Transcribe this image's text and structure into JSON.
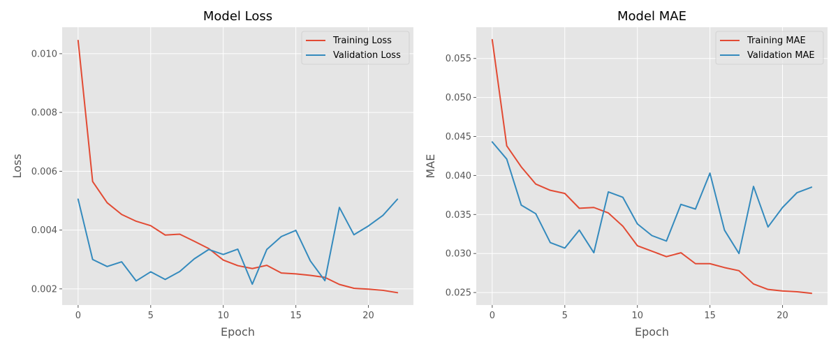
{
  "chart_data": [
    {
      "type": "line",
      "title": "Model Loss",
      "xlabel": "Epoch",
      "ylabel": "Loss",
      "xlim": [
        -1.1,
        23.1
      ],
      "ylim": [
        0.00145,
        0.0109
      ],
      "xticks": [
        0,
        5,
        10,
        15,
        20
      ],
      "xtick_labels": [
        "0",
        "5",
        "10",
        "15",
        "20"
      ],
      "yticks": [
        0.002,
        0.004,
        0.006,
        0.008,
        0.01
      ],
      "ytick_labels": [
        "0.002",
        "0.004",
        "0.006",
        "0.008",
        "0.010"
      ],
      "grid": true,
      "legend": "top-right",
      "x": [
        0,
        1,
        2,
        3,
        4,
        5,
        6,
        7,
        8,
        9,
        10,
        11,
        12,
        13,
        14,
        15,
        16,
        17,
        18,
        19,
        20,
        21,
        22
      ],
      "series": [
        {
          "name": "Training Loss",
          "color": "#E24A33",
          "values": [
            0.01045,
            0.00565,
            0.00493,
            0.00453,
            0.0043,
            0.00415,
            0.00383,
            0.00386,
            0.00362,
            0.00337,
            0.00298,
            0.00279,
            0.00269,
            0.0028,
            0.00254,
            0.00251,
            0.00246,
            0.00239,
            0.00215,
            0.00202,
            0.00199,
            0.00195,
            0.00187
          ]
        },
        {
          "name": "Validation Loss",
          "color": "#348ABD",
          "values": [
            0.00505,
            0.003,
            0.00276,
            0.00292,
            0.00227,
            0.00258,
            0.00232,
            0.00259,
            0.00302,
            0.00334,
            0.00317,
            0.00335,
            0.00216,
            0.00334,
            0.00378,
            0.00399,
            0.00295,
            0.00228,
            0.00477,
            0.00384,
            0.00414,
            0.0045,
            0.00505
          ]
        }
      ]
    },
    {
      "type": "line",
      "title": "Model MAE",
      "xlabel": "Epoch",
      "ylabel": "MAE",
      "xlim": [
        -1.1,
        23.1
      ],
      "ylim": [
        0.0234,
        0.059
      ],
      "xticks": [
        0,
        5,
        10,
        15,
        20
      ],
      "xtick_labels": [
        "0",
        "5",
        "10",
        "15",
        "20"
      ],
      "yticks": [
        0.025,
        0.03,
        0.035,
        0.04,
        0.045,
        0.05,
        0.055
      ],
      "ytick_labels": [
        "0.025",
        "0.030",
        "0.035",
        "0.040",
        "0.045",
        "0.050",
        "0.055"
      ],
      "grid": true,
      "legend": "top-right",
      "x": [
        0,
        1,
        2,
        3,
        4,
        5,
        6,
        7,
        8,
        9,
        10,
        11,
        12,
        13,
        14,
        15,
        16,
        17,
        18,
        19,
        20,
        21,
        22
      ],
      "series": [
        {
          "name": "Training MAE",
          "color": "#E24A33",
          "values": [
            0.0574,
            0.0438,
            0.0411,
            0.0389,
            0.0381,
            0.0377,
            0.0358,
            0.0359,
            0.0352,
            0.0335,
            0.031,
            0.0303,
            0.0296,
            0.0301,
            0.0287,
            0.0287,
            0.0282,
            0.0278,
            0.0261,
            0.0254,
            0.0252,
            0.0251,
            0.0249
          ]
        },
        {
          "name": "Validation MAE",
          "color": "#348ABD",
          "values": [
            0.0443,
            0.0421,
            0.0362,
            0.0351,
            0.0314,
            0.0307,
            0.033,
            0.0301,
            0.0379,
            0.0372,
            0.0338,
            0.0323,
            0.0316,
            0.0363,
            0.0357,
            0.0403,
            0.033,
            0.03,
            0.0386,
            0.0334,
            0.0359,
            0.0378,
            0.0385
          ]
        }
      ]
    }
  ]
}
